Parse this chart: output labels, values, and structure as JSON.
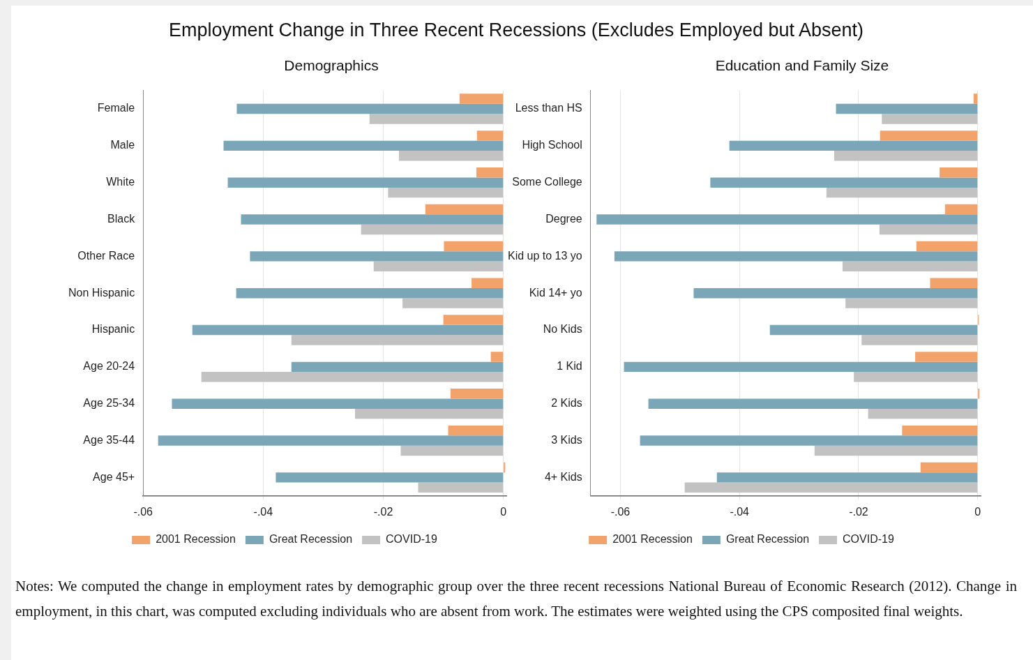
{
  "chart_data": [
    {
      "type": "bar",
      "orientation": "horizontal",
      "title": "Employment Change in Three Recent Recessions (Excludes Employed but Absent)",
      "subtitle": "Demographics",
      "categories": [
        "Female",
        "Male",
        "White",
        "Black",
        "Other Race",
        "Non Hispanic",
        "Hispanic",
        "Age 20-24",
        "Age 25-34",
        "Age 35-44",
        "Age 45+"
      ],
      "series": [
        {
          "name": "2001 Recession",
          "color": "#f2a36b",
          "values": [
            -0.0073,
            -0.0044,
            -0.0045,
            -0.013,
            -0.0099,
            -0.0053,
            -0.01,
            -0.0021,
            -0.0088,
            -0.0092,
            0.0003
          ]
        },
        {
          "name": "Great Recession",
          "color": "#7aa6b8",
          "values": [
            -0.0444,
            -0.0466,
            -0.0459,
            -0.0437,
            -0.0422,
            -0.0445,
            -0.0518,
            -0.0353,
            -0.0552,
            -0.0575,
            -0.0379
          ]
        },
        {
          "name": "COVID-19",
          "color": "#c2c2c2",
          "values": [
            -0.0223,
            -0.0174,
            -0.0192,
            -0.0237,
            -0.0216,
            -0.0168,
            -0.0353,
            -0.0503,
            -0.0247,
            -0.0171,
            -0.0142
          ]
        }
      ],
      "xlim": [
        -0.06,
        0.0005
      ],
      "xticks": [
        {
          "value": -0.06,
          "label": "-.06"
        },
        {
          "value": -0.04,
          "label": "-.04"
        },
        {
          "value": -0.02,
          "label": "-.02"
        },
        0
      ],
      "grid": "x",
      "legend": "bottom"
    },
    {
      "type": "bar",
      "orientation": "horizontal",
      "subtitle": "Education and Family Size",
      "categories": [
        "Less than HS",
        "High School",
        "Some College",
        "Degree",
        "Kid up to 13 yo",
        "Kid 14+ yo",
        "No Kids",
        "1 Kid",
        "2 Kids",
        "3 Kids",
        "4+ Kids"
      ],
      "series": [
        {
          "name": "2001 Recession",
          "color": "#f2a36b",
          "values": [
            -0.0007,
            -0.0164,
            -0.0064,
            -0.0055,
            -0.0103,
            -0.008,
            0.0002,
            -0.0105,
            0.0003,
            -0.0127,
            -0.0096
          ]
        },
        {
          "name": "Great Recession",
          "color": "#7aa6b8",
          "values": [
            -0.0238,
            -0.0417,
            -0.0449,
            -0.064,
            -0.061,
            -0.0477,
            -0.0349,
            -0.0594,
            -0.0553,
            -0.0567,
            -0.0438
          ]
        },
        {
          "name": "COVID-19",
          "color": "#c2c2c2",
          "values": [
            -0.0161,
            -0.0241,
            -0.0254,
            -0.0165,
            -0.0227,
            -0.0222,
            -0.0195,
            -0.0208,
            -0.0184,
            -0.0274,
            -0.0492
          ]
        }
      ],
      "xlim": [
        -0.065,
        0.0005
      ],
      "xticks": [
        {
          "value": -0.06,
          "label": "-.06"
        },
        {
          "value": -0.04,
          "label": "-.04"
        },
        {
          "value": -0.02,
          "label": "-.02"
        },
        0
      ],
      "grid": "x",
      "legend": "bottom",
      "annotations": [
        "Notes: We computed the change in employment rates by demographic group over the three recent recessions National Bureau of Economic Research (2012). Change in employment, in this chart, was computed excluding individuals who are absent from work. The estimates were weighted using the CPS composited final weights."
      ]
    }
  ]
}
